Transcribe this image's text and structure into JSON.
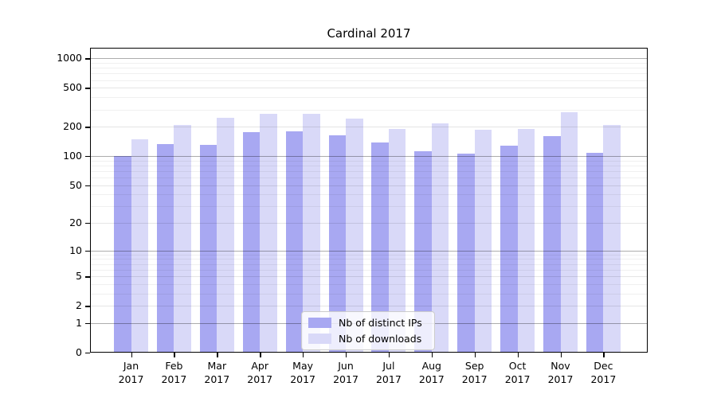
{
  "title": "Cardinal 2017",
  "legend": {
    "items": [
      {
        "label": "Nb of distinct IPs",
        "color": "#a8a8f2"
      },
      {
        "label": "Nb of downloads",
        "color": "#d9d9f8"
      }
    ]
  },
  "chart_data": {
    "type": "bar",
    "title": "Cardinal 2017",
    "categories": [
      "Jan",
      "Feb",
      "Mar",
      "Apr",
      "May",
      "Jun",
      "Jul",
      "Aug",
      "Sep",
      "Oct",
      "Nov",
      "Dec"
    ],
    "category_year": "2017",
    "series": [
      {
        "name": "Nb of distinct IPs",
        "color": "#a8a8f2",
        "values": [
          100,
          134,
          131,
          176,
          180,
          164,
          138,
          112,
          105,
          128,
          159,
          107
        ]
      },
      {
        "name": "Nb of downloads",
        "color": "#d9d9f8",
        "values": [
          150,
          208,
          245,
          272,
          269,
          243,
          190,
          216,
          185,
          191,
          283,
          209
        ]
      }
    ],
    "xlabel": "",
    "ylabel": "",
    "yscale": "log1p",
    "ylim": [
      0,
      1282
    ],
    "yticks": [
      0,
      1,
      2,
      5,
      10,
      20,
      50,
      100,
      200,
      500,
      1000
    ],
    "grid": true,
    "grid_minor_ticks": [
      3,
      4,
      6,
      7,
      8,
      9,
      30,
      40,
      60,
      70,
      80,
      90,
      300,
      400,
      600,
      700,
      800,
      900
    ],
    "legend_position": "lower center"
  }
}
